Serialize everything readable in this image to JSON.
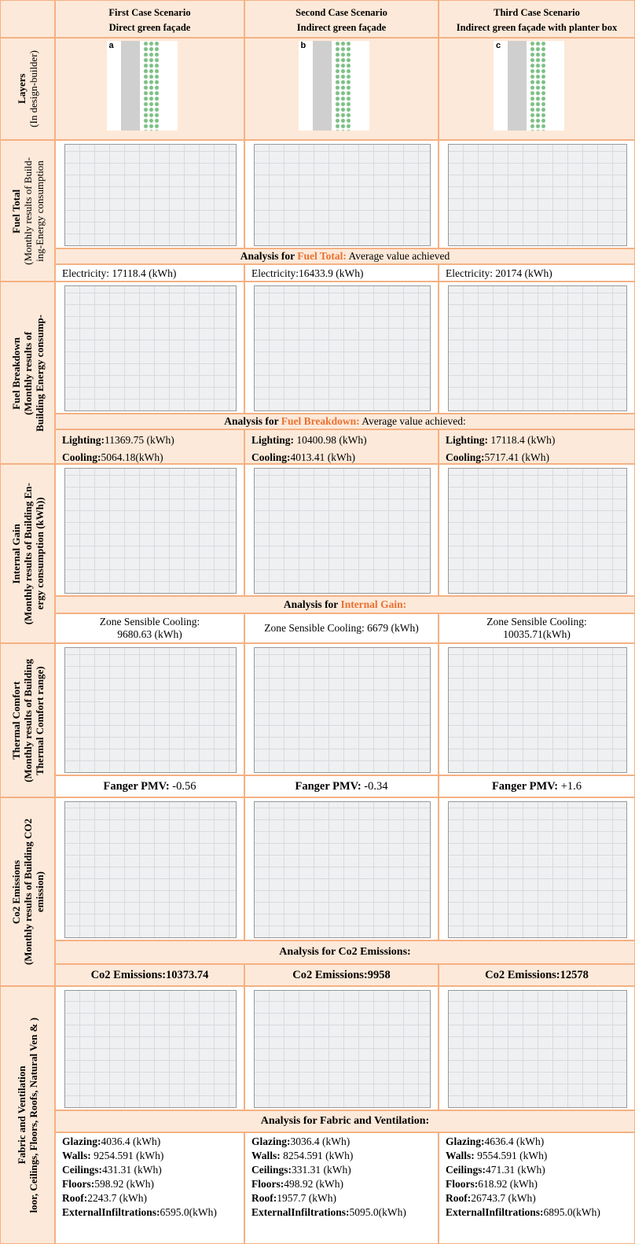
{
  "header": {
    "columns": [
      {
        "title": "First Case Scenario",
        "subtitle": "Direct green façade"
      },
      {
        "title": "Second Case Scenario",
        "subtitle": "Indirect green façade"
      },
      {
        "title": "Third Case Scenario",
        "subtitle": "Indirect green façade with planter box"
      }
    ]
  },
  "layers": {
    "label": [
      "Layers",
      "(In design-builder)"
    ],
    "panel_letters": [
      "a",
      "b",
      "c"
    ]
  },
  "fuel_total": {
    "label": [
      "Fuel Total",
      "(Monthly results of Build-",
      "ing-Energy consumption"
    ],
    "analysis": {
      "prefix": "Analysis for ",
      "topic": "Fuel Total:",
      "suffix": " Average value achieved"
    },
    "results": [
      "Electricity: 17118.4 (kWh)",
      "Electricity:16433.9 (kWh)",
      "Electricity: 20174 (kWh)"
    ]
  },
  "fuel_breakdown": {
    "label": [
      "Fuel Breakdown",
      "(Monthly results of",
      "Building Energy consump-"
    ],
    "analysis": {
      "prefix": "Analysis for ",
      "topic": "Fuel Breakdown:",
      "suffix": " Average value achieved:"
    },
    "results": [
      [
        {
          "label": "Lighting:",
          "value": "11369.75 (kWh)"
        },
        {
          "label": "Cooling:",
          "value": "5064.18(kWh)"
        }
      ],
      [
        {
          "label": "Lighting:",
          "value": " 10400.98 (kWh)"
        },
        {
          "label": "Cooling:",
          "value": "4013.41 (kWh)"
        }
      ],
      [
        {
          "label": "Lighting:",
          "value": " 17118.4 (kWh)"
        },
        {
          "label": "Cooling:",
          "value": "5717.41 (kWh)"
        }
      ]
    ]
  },
  "internal_gain": {
    "label": [
      "Internal Gain",
      "(Monthly results of Building En-",
      "ergy consumption (kWh))"
    ],
    "analysis": {
      "prefix": "Analysis for ",
      "topic": "Internal Gain:"
    },
    "results": [
      [
        "Zone Sensible Cooling:",
        "9680.63 (kWh)"
      ],
      [
        "Zone Sensible Cooling: 6679 (kWh)"
      ],
      [
        "Zone Sensible Cooling:",
        "10035.71(kWh)"
      ]
    ]
  },
  "thermal_comfort": {
    "label": [
      "Thermal Comfort",
      "(Monthly results of Building",
      "Thermal Comfort range)"
    ],
    "results": [
      {
        "label": "Fanger PMV:",
        "value": " -0.56"
      },
      {
        "label": "Fanger PMV:",
        "value": " -0.34"
      },
      {
        "label": "Fanger PMV:",
        "value": " +1.6"
      }
    ]
  },
  "co2": {
    "label": [
      "Co2 Emissions",
      "(Monthly results of Building CO2",
      "emission)"
    ],
    "analysis": "Analysis for Co2 Emissions:",
    "results": [
      {
        "label": "Co2 Emissions:",
        "value": "10373.74"
      },
      {
        "label": "Co2 Emissions:",
        "value": "9958"
      },
      {
        "label": "Co2 Emissions:",
        "value": "12578"
      }
    ]
  },
  "fabric": {
    "label": [
      "Fabric and Ventilation",
      "loor, Ceilings, Floors, Roofs, Natural Ven & )"
    ],
    "analysis": "Analysis for Fabric and Ventilation:",
    "results": [
      [
        {
          "label": "Glazing:",
          "value": "4036.4 (kWh)"
        },
        {
          "label": "Walls:",
          "value": " 9254.591 (kWh)"
        },
        {
          "label": "Ceilings:",
          "value": "431.31 (kWh)"
        },
        {
          "label": "Floors:",
          "value": "598.92 (kWh)"
        },
        {
          "label": "Roof:",
          "value": "2243.7 (kWh)"
        },
        {
          "label": "ExternalInfiltrations:",
          "value": "6595.0(kWh)"
        }
      ],
      [
        {
          "label": "Glazing:",
          "value": "3036.4 (kWh)"
        },
        {
          "label": "Walls:",
          "value": " 8254.591 (kWh)"
        },
        {
          "label": "Ceilings:",
          "value": "331.31 (kWh)"
        },
        {
          "label": "Floors:",
          "value": "498.92 (kWh)"
        },
        {
          "label": "Roof:",
          "value": "1957.7 (kWh)"
        },
        {
          "label": "ExternalInfiltrations:",
          "value": "5095.0(kWh)"
        }
      ],
      [
        {
          "label": "Glazing:",
          "value": "4636.4 (kWh)"
        },
        {
          "label": "Walls:",
          "value": " 9554.591 (kWh)"
        },
        {
          "label": "Ceilings:",
          "value": "471.31 (kWh)"
        },
        {
          "label": "Floors:",
          "value": "618.92 (kWh)"
        },
        {
          "label": "Roof:",
          "value": "26743.7 (kWh)"
        },
        {
          "label": "ExternalInfiltrations:",
          "value": "6895.0(kWh)"
        }
      ]
    ]
  }
}
